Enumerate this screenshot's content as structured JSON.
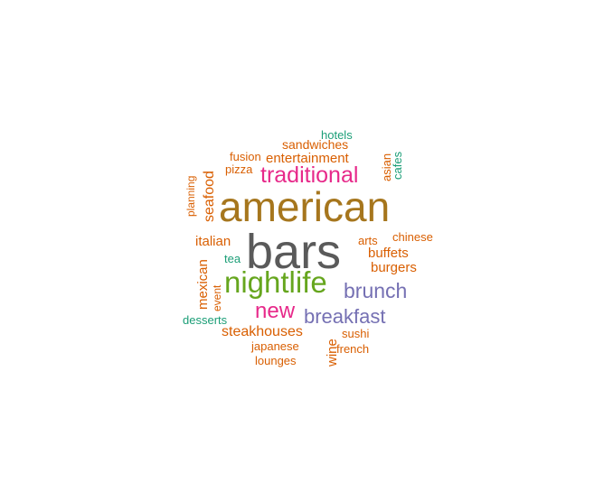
{
  "words": [
    {
      "text": "bars",
      "color": "#5a5a5a"
    },
    {
      "text": "american",
      "color": "#a6761d"
    },
    {
      "text": "nightlife",
      "color": "#66a61e"
    },
    {
      "text": "traditional",
      "color": "#e7298a"
    },
    {
      "text": "brunch",
      "color": "#7570b3"
    },
    {
      "text": "breakfast",
      "color": "#7570b3"
    },
    {
      "text": "new",
      "color": "#e7298a"
    },
    {
      "text": "steakhouses",
      "color": "#d95f02"
    },
    {
      "text": "entertainment",
      "color": "#d95f02"
    },
    {
      "text": "seafood",
      "color": "#d95f02"
    },
    {
      "text": "italian",
      "color": "#d95f02"
    },
    {
      "text": "mexican",
      "color": "#d95f02"
    },
    {
      "text": "buffets",
      "color": "#d95f02"
    },
    {
      "text": "burgers",
      "color": "#d95f02"
    },
    {
      "text": "sandwiches",
      "color": "#d95f02"
    },
    {
      "text": "fusion",
      "color": "#d95f02"
    },
    {
      "text": "pizza",
      "color": "#d95f02"
    },
    {
      "text": "hotels",
      "color": "#1b9e77"
    },
    {
      "text": "asian",
      "color": "#d95f02"
    },
    {
      "text": "cafes",
      "color": "#1b9e77"
    },
    {
      "text": "planning",
      "color": "#d95f02"
    },
    {
      "text": "arts",
      "color": "#d95f02"
    },
    {
      "text": "chinese",
      "color": "#d95f02"
    },
    {
      "text": "tea",
      "color": "#1b9e77"
    },
    {
      "text": "event",
      "color": "#d95f02"
    },
    {
      "text": "desserts",
      "color": "#1b9e77"
    },
    {
      "text": "japanese",
      "color": "#d95f02"
    },
    {
      "text": "lounges",
      "color": "#d95f02"
    },
    {
      "text": "sushi",
      "color": "#d95f02"
    },
    {
      "text": "wine",
      "color": "#d95f02"
    },
    {
      "text": "french",
      "color": "#d95f02"
    }
  ]
}
